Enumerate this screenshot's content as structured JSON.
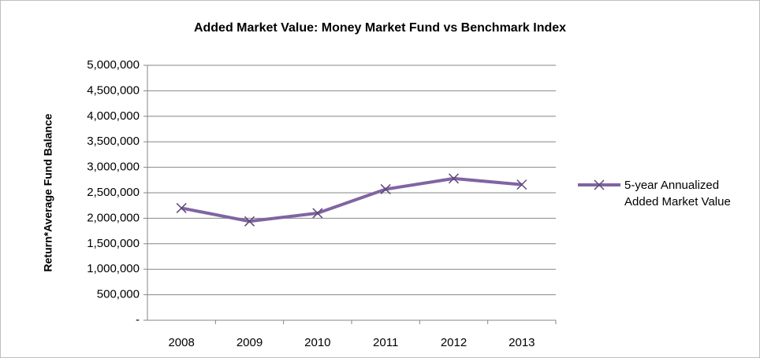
{
  "chart_data": {
    "type": "line",
    "title": "Added Market Value: Money Market Fund vs Benchmark Index",
    "y_label": "Return*Average Fund Balance",
    "categories": [
      "2008",
      "2009",
      "2010",
      "2011",
      "2012",
      "2013"
    ],
    "series": [
      {
        "name": "5-year Annualized Added Market Value",
        "color": "#8064a2",
        "values": [
          2200000,
          1940000,
          2100000,
          2570000,
          2780000,
          2660000
        ]
      }
    ],
    "ylim": [
      0,
      5000000
    ],
    "yticks": [
      {
        "value": 0,
        "label": "-"
      },
      {
        "value": 500000,
        "label": "500,000"
      },
      {
        "value": 1000000,
        "label": "1,000,000"
      },
      {
        "value": 1500000,
        "label": "1,500,000"
      },
      {
        "value": 2000000,
        "label": "2,000,000"
      },
      {
        "value": 2500000,
        "label": "2,500,000"
      },
      {
        "value": 3000000,
        "label": "3,000,000"
      },
      {
        "value": 3500000,
        "label": "3,500,000"
      },
      {
        "value": 4000000,
        "label": "4,000,000"
      },
      {
        "value": 4500000,
        "label": "4,500,000"
      },
      {
        "value": 5000000,
        "label": "5,000,000"
      }
    ],
    "grid": true,
    "legend": "right"
  }
}
